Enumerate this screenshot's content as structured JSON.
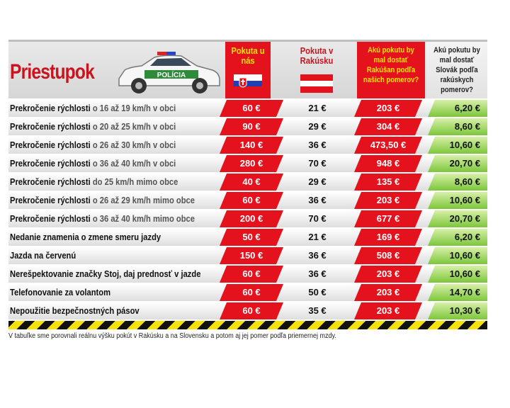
{
  "header": {
    "title": "Priestupok",
    "car_label": "POLÍCIA",
    "col1": "Pokuta u nás",
    "col2": "Pokuta v Rakúsku",
    "col3": "Akú pokutu by mal dostať Rakúšan podľa našich pomerov?",
    "col4": "Akú pokutu by mal dostať Slovák podľa rakúskych pomerov?"
  },
  "rows": [
    {
      "label": "Prekročenie rýchlosti",
      "detail": "o 16 až 19 km/h v obci",
      "sk": "60 €",
      "at": "21 €",
      "at_equiv": "203 €",
      "sk_equiv": "6,20 €"
    },
    {
      "label": "Prekročenie rýchlosti",
      "detail": "o 20 až 25 km/h v obci",
      "sk": "90 €",
      "at": "29 €",
      "at_equiv": "304 €",
      "sk_equiv": "8,60 €"
    },
    {
      "label": "Prekročenie rýchlosti",
      "detail": "o 26 až 30 km/h v obci",
      "sk": "140 €",
      "at": "36 €",
      "at_equiv": "473,50 €",
      "sk_equiv": "10,60 €"
    },
    {
      "label": "Prekročenie rýchlosti",
      "detail": "o 36 až 40 km/h v obci",
      "sk": "280 €",
      "at": "70 €",
      "at_equiv": "948 €",
      "sk_equiv": "20,70 €"
    },
    {
      "label": "Prekročenie rýchlosti",
      "detail": "do 25 km/h mimo obce",
      "sk": "40 €",
      "at": "29 €",
      "at_equiv": "135 €",
      "sk_equiv": "8,60 €"
    },
    {
      "label": "Prekročenie rýchlosti",
      "detail": "o 26 až 29 km/h mimo obce",
      "sk": "60 €",
      "at": "36 €",
      "at_equiv": "203 €",
      "sk_equiv": "10,60 €"
    },
    {
      "label": "Prekročenie rýchlosti",
      "detail": "o 36 až 40 km/h mimo obce",
      "sk": "200 €",
      "at": "70 €",
      "at_equiv": "677 €",
      "sk_equiv": "20,70 €"
    },
    {
      "label": "Nedanie znamenia o zmene smeru jazdy",
      "detail": "",
      "sk": "50 €",
      "at": "21 €",
      "at_equiv": "169 €",
      "sk_equiv": "6,20 €"
    },
    {
      "label": "Jazda na červenú",
      "detail": "",
      "sk": "150 €",
      "at": "36 €",
      "at_equiv": "508 €",
      "sk_equiv": "10,60 €"
    },
    {
      "label": "Nerešpektovanie značky Stoj, daj prednosť v jazde",
      "detail": "",
      "sk": "60 €",
      "at": "36 €",
      "at_equiv": "203 €",
      "sk_equiv": "10,60 €"
    },
    {
      "label": "Telefonovanie za volantom",
      "detail": "",
      "sk": "60 €",
      "at": "50 €",
      "at_equiv": "203 €",
      "sk_equiv": "14,70 €"
    },
    {
      "label": "Nepoužitie bezpečnostných pásov",
      "detail": "",
      "sk": "60 €",
      "at": "35 €",
      "at_equiv": "203 €",
      "sk_equiv": "10,30 €"
    }
  ],
  "note": "V tabuľke sme porovnali reálnu výšku pokút v Rakúsku a na Slovensku a potom aj jej pomer podľa priemernej mzdy.",
  "colors": {
    "red": "#e3121d",
    "yellow": "#ffe000",
    "green": "#7cc63a"
  }
}
